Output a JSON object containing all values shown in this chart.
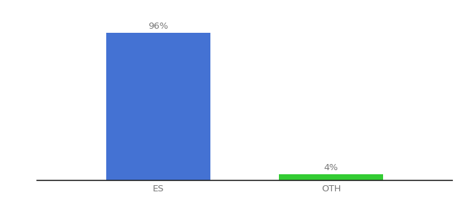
{
  "categories": [
    "ES",
    "OTH"
  ],
  "values": [
    96,
    4
  ],
  "bar_colors": [
    "#4472d3",
    "#33cc33"
  ],
  "value_labels": [
    "96%",
    "4%"
  ],
  "ylim": [
    0,
    108
  ],
  "xlim": [
    -0.7,
    1.7
  ],
  "background_color": "#ffffff",
  "label_fontsize": 9.5,
  "tick_fontsize": 9.5,
  "bar_width": 0.6,
  "label_color": "#777777",
  "tick_color": "#777777",
  "spine_color": "#222222"
}
